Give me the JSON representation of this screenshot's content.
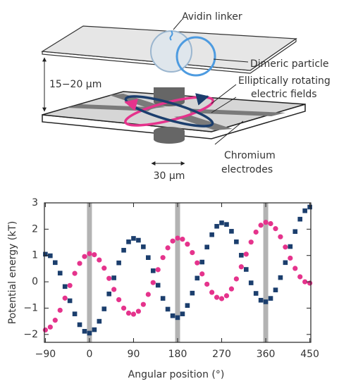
{
  "diagram": {
    "avidin_linker": "Avidin linker",
    "dimeric_particle": "Dimeric particle",
    "field_label": [
      "Elliptically rotating",
      "electric fields"
    ],
    "gap": "15−20 μm",
    "electrodes_label": [
      "Chromium",
      "electrodes"
    ],
    "width": "30 μm"
  },
  "chart_data": {
    "type": "scatter",
    "xlabel": "Angular position (°)",
    "ylabel": "Potential energy (kT)",
    "x": [
      -90,
      -80,
      -70,
      -60,
      -50,
      -40,
      -30,
      -20,
      -10,
      0,
      10,
      20,
      30,
      40,
      50,
      60,
      70,
      80,
      90,
      100,
      110,
      120,
      130,
      140,
      150,
      160,
      170,
      180,
      190,
      200,
      210,
      220,
      230,
      240,
      250,
      260,
      270,
      280,
      290,
      300,
      310,
      320,
      330,
      340,
      350,
      360,
      370,
      380,
      390,
      400,
      410,
      420,
      430,
      440,
      450
    ],
    "series": [
      {
        "color": "#e5338c",
        "marker": "circle",
        "values": [
          -1.83,
          -1.72,
          -1.46,
          -1.08,
          -0.62,
          -0.14,
          0.32,
          0.7,
          0.96,
          1.07,
          1.03,
          0.83,
          0.52,
          0.13,
          -0.29,
          -0.68,
          -1.0,
          -1.19,
          -1.23,
          -1.12,
          -0.86,
          -0.48,
          -0.03,
          0.46,
          0.92,
          1.29,
          1.55,
          1.66,
          1.62,
          1.43,
          1.11,
          0.72,
          0.3,
          -0.09,
          -0.4,
          -0.59,
          -0.64,
          -0.53,
          -0.27,
          0.11,
          0.57,
          1.05,
          1.51,
          1.89,
          2.15,
          2.26,
          2.21,
          2.02,
          1.71,
          1.32,
          0.9,
          0.51,
          0.19,
          0,
          -0.05
        ]
      },
      {
        "color": "#1b3e6d",
        "marker": "square",
        "values": [
          1.05,
          0.99,
          0.73,
          0.33,
          -0.18,
          -0.72,
          -1.22,
          -1.63,
          -1.88,
          -1.95,
          -1.82,
          -1.5,
          -1.03,
          -0.46,
          0.15,
          0.72,
          1.2,
          1.52,
          1.65,
          1.58,
          1.33,
          0.92,
          0.42,
          -0.13,
          -0.63,
          -1.04,
          -1.29,
          -1.36,
          -1.22,
          -0.9,
          -0.43,
          0.14,
          0.75,
          1.32,
          1.79,
          2.11,
          2.24,
          2.18,
          1.92,
          1.52,
          1.01,
          0.47,
          -0.04,
          -0.44,
          -0.7,
          -0.76,
          -0.63,
          -0.31,
          0.16,
          0.73,
          1.34,
          1.91,
          2.38,
          2.7,
          2.84
        ]
      }
    ],
    "highlight_x": [
      0,
      180,
      360
    ],
    "highlight_color": "#b3b3b3",
    "xlim": [
      -92,
      452
    ],
    "ylim": [
      -2.3,
      3
    ],
    "xticks": [
      {
        "value": -90,
        "label": "−90"
      },
      0,
      90,
      180,
      270,
      360,
      450
    ],
    "yticks": [
      {
        "value": -2,
        "label": "−2"
      },
      {
        "value": -1,
        "label": "−1"
      },
      0,
      1,
      2,
      3
    ]
  }
}
